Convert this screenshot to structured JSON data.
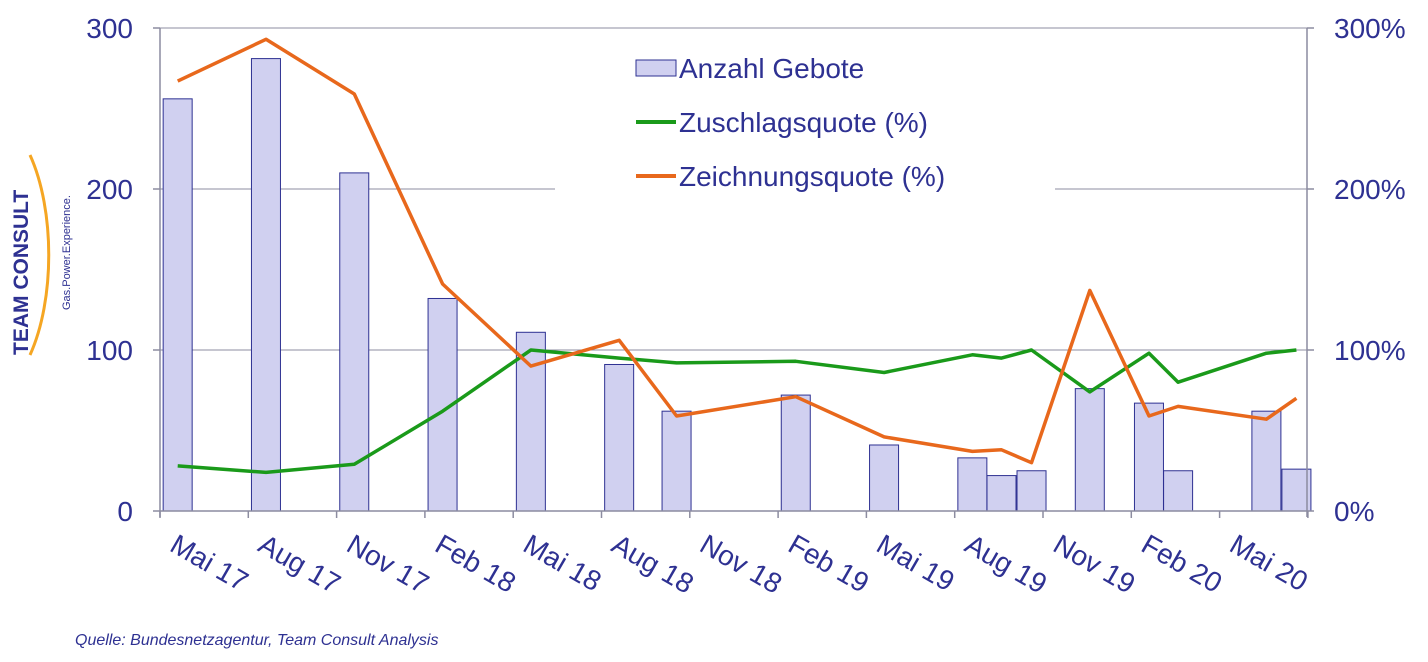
{
  "colors": {
    "axis_text": "#2e3192",
    "bar_fill": "#d0d0f0",
    "bar_stroke": "#2e3192",
    "green": "#1a9a1a",
    "orange": "#e8681c",
    "grid": "#8c8ca0",
    "logo_text": "#2e3192",
    "logo_arc": "#f5a623"
  },
  "logo": {
    "name": "TEAM CONSULT",
    "tagline": "Gas.Power.Experience."
  },
  "source": "Quelle: Bundesnetzagentur,  Team Consult Analysis",
  "chart_data": {
    "type": "bar",
    "x_ticks": [
      "Mai 17",
      "Aug 17",
      "Nov 17",
      "Feb 18",
      "Mai 18",
      "Aug 18",
      "Nov 18",
      "Feb 19",
      "Mai 19",
      "Aug 19",
      "Nov 19",
      "Feb 20",
      "Mai 20"
    ],
    "y_left": {
      "min": 0,
      "max": 300,
      "ticks": [
        "0",
        "100",
        "200",
        "300"
      ]
    },
    "y_right": {
      "min": 0,
      "max": 300,
      "ticks": [
        "0%",
        "100%",
        "200%",
        "300%"
      ]
    },
    "gridlines": [
      100,
      200,
      300
    ],
    "legend": {
      "position": "top-center"
    },
    "series": [
      {
        "name": "Anzahl Gebote",
        "type": "bar",
        "axis": "left",
        "points": [
          {
            "x": 0.2,
            "y": 256
          },
          {
            "x": 1.2,
            "y": 281
          },
          {
            "x": 2.2,
            "y": 210
          },
          {
            "x": 3.2,
            "y": 132
          },
          {
            "x": 4.2,
            "y": 111
          },
          {
            "x": 5.2,
            "y": 91
          },
          {
            "x": 5.85,
            "y": 62
          },
          {
            "x": 7.2,
            "y": 72
          },
          {
            "x": 8.2,
            "y": 41
          },
          {
            "x": 9.2,
            "y": 33
          },
          {
            "x": 9.53,
            "y": 22
          },
          {
            "x": 9.87,
            "y": 25
          },
          {
            "x": 10.53,
            "y": 76
          },
          {
            "x": 11.2,
            "y": 67
          },
          {
            "x": 11.53,
            "y": 25
          },
          {
            "x": 12.53,
            "y": 62
          },
          {
            "x": 12.87,
            "y": 26
          }
        ]
      },
      {
        "name": "Zuschlagsquote (%)",
        "type": "line",
        "axis": "right",
        "points": [
          {
            "x": 0.2,
            "y": 28
          },
          {
            "x": 1.2,
            "y": 24
          },
          {
            "x": 2.2,
            "y": 29
          },
          {
            "x": 3.2,
            "y": 62
          },
          {
            "x": 4.2,
            "y": 100
          },
          {
            "x": 5.2,
            "y": 95
          },
          {
            "x": 5.85,
            "y": 92
          },
          {
            "x": 7.2,
            "y": 93
          },
          {
            "x": 8.2,
            "y": 86
          },
          {
            "x": 9.2,
            "y": 97
          },
          {
            "x": 9.53,
            "y": 95
          },
          {
            "x": 9.87,
            "y": 100
          },
          {
            "x": 10.53,
            "y": 74
          },
          {
            "x": 11.2,
            "y": 98
          },
          {
            "x": 11.53,
            "y": 80
          },
          {
            "x": 12.53,
            "y": 98
          },
          {
            "x": 12.87,
            "y": 100
          }
        ]
      },
      {
        "name": "Zeichnungsquote (%)",
        "type": "line",
        "axis": "right",
        "points": [
          {
            "x": 0.2,
            "y": 267
          },
          {
            "x": 1.2,
            "y": 293
          },
          {
            "x": 2.2,
            "y": 259
          },
          {
            "x": 3.2,
            "y": 141
          },
          {
            "x": 4.2,
            "y": 90
          },
          {
            "x": 5.2,
            "y": 106
          },
          {
            "x": 5.85,
            "y": 59
          },
          {
            "x": 7.2,
            "y": 71
          },
          {
            "x": 8.2,
            "y": 46
          },
          {
            "x": 9.2,
            "y": 37
          },
          {
            "x": 9.53,
            "y": 38
          },
          {
            "x": 9.87,
            "y": 30
          },
          {
            "x": 10.53,
            "y": 137
          },
          {
            "x": 11.2,
            "y": 59
          },
          {
            "x": 11.53,
            "y": 65
          },
          {
            "x": 12.53,
            "y": 57
          },
          {
            "x": 12.87,
            "y": 70
          }
        ]
      }
    ]
  }
}
